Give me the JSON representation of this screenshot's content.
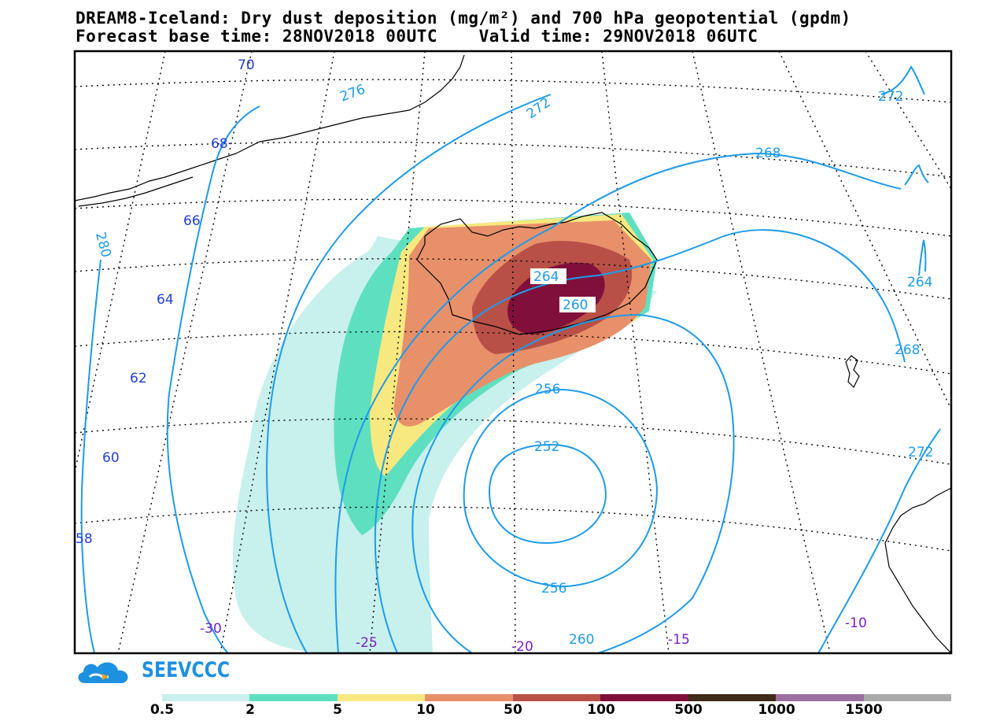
{
  "title_line1": "DREAM8-Iceland: Dry dust deposition (mg/m²) and 700 hPa geopotential (gpdm)",
  "title_line2": "Forecast base time: 28NOV2018 00UTC    Valid time: 29NOV2018 06UTC",
  "logo_text": "SEEVCCC",
  "colors": {
    "c1": "#c8f0ec",
    "c2": "#5ee0c0",
    "c3": "#f8e880",
    "c4": "#e8906a",
    "c5": "#b85048",
    "c6": "#80103a",
    "c7": "#402a18",
    "c8": "#9c70a0",
    "c9": "#aaaaaa",
    "contour": "#1e9bea",
    "lat_label": "#1f3fd8",
    "lon_label": "#7a1ec8"
  },
  "legend": {
    "colors": [
      "#c8f0ec",
      "#5ee0c0",
      "#f8e880",
      "#e8906a",
      "#b85048",
      "#80103a",
      "#402a18",
      "#9c70a0",
      "#aaaaaa"
    ],
    "labels": [
      "0.5",
      "2",
      "5",
      "10",
      "50",
      "100",
      "500",
      "1000",
      "1500"
    ]
  },
  "contour_labels": [
    "276",
    "272",
    "272",
    "268",
    "280",
    "264",
    "264",
    "260",
    "268",
    "256",
    "252",
    "272",
    "256",
    "260"
  ],
  "lat_labels": [
    "70",
    "68",
    "66",
    "64",
    "62",
    "60",
    "58"
  ],
  "lon_labels": [
    "-30",
    "-25",
    "-20",
    "-15",
    "-10"
  ]
}
